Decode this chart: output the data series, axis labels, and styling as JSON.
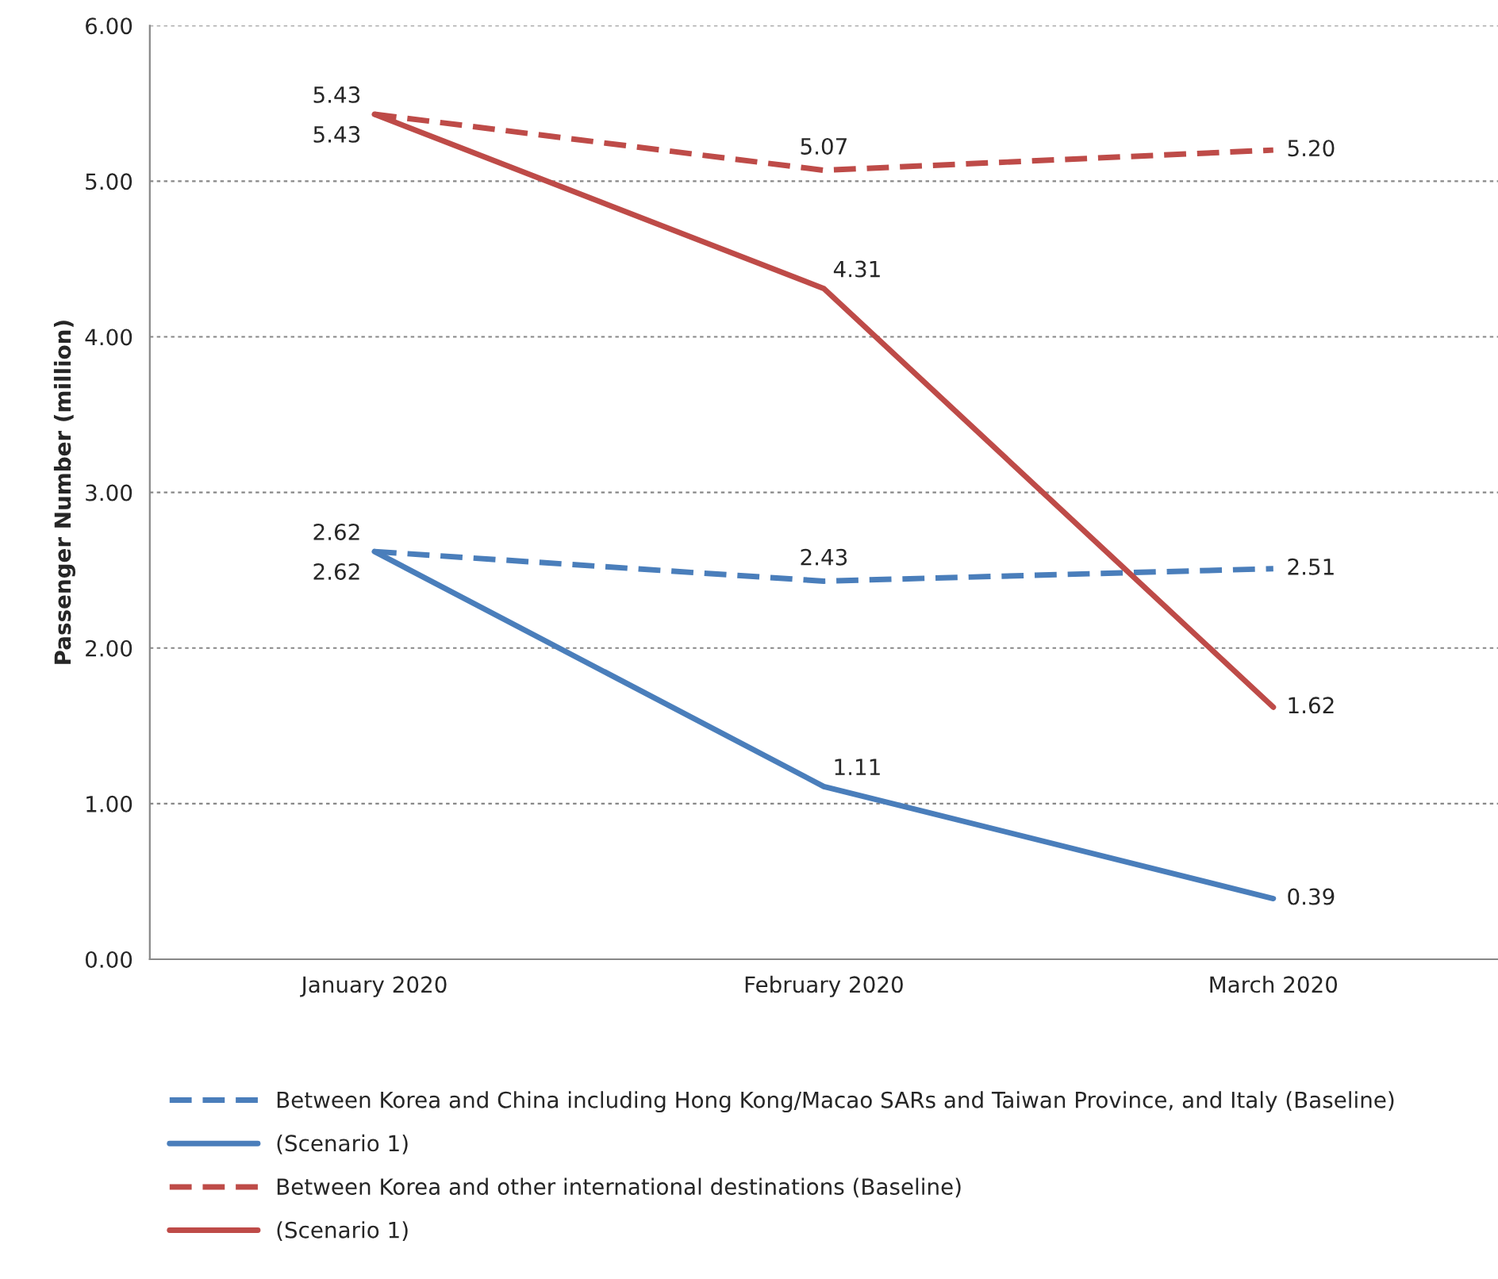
{
  "chart_data": {
    "type": "line",
    "ylabel": "Passenger Number (million)",
    "categories": [
      "January 2020",
      "February 2020",
      "March 2020"
    ],
    "series": [
      {
        "name": "Between Korea and China including Hong Kong/Macao SARs and Taiwan Province, and Italy (Baseline)",
        "color": "#4a7ebb",
        "line_style": "dashed",
        "values": [
          2.62,
          2.43,
          2.51
        ],
        "value_labels": [
          "2.62",
          "2.43",
          "2.51"
        ]
      },
      {
        "name": "(Scenario 1)",
        "color": "#4a7ebb",
        "line_style": "solid",
        "values": [
          2.62,
          1.11,
          0.39
        ],
        "value_labels": [
          "2.62",
          "1.11",
          "0.39"
        ]
      },
      {
        "name": "Between Korea and other international destinations (Baseline)",
        "color": "#be4b48",
        "line_style": "dashed",
        "values": [
          5.43,
          5.07,
          5.2
        ],
        "value_labels": [
          "5.43",
          "5.07",
          "5.20"
        ]
      },
      {
        "name": "(Scenario 1)",
        "color": "#be4b48",
        "line_style": "solid",
        "values": [
          5.43,
          4.31,
          1.62
        ],
        "value_labels": [
          "5.43",
          "4.31",
          "1.62"
        ]
      }
    ],
    "ylim": [
      0,
      6
    ],
    "yticks": [
      {
        "value": 0,
        "label": "0.00"
      },
      {
        "value": 1,
        "label": "1.00"
      },
      {
        "value": 2,
        "label": "2.00"
      },
      {
        "value": 3,
        "label": "3.00"
      },
      {
        "value": 4,
        "label": "4.00"
      },
      {
        "value": 5,
        "label": "5.00"
      },
      {
        "value": 6,
        "label": "6.00"
      }
    ],
    "grid": "y",
    "legend": "bottom",
    "marker": "none"
  }
}
